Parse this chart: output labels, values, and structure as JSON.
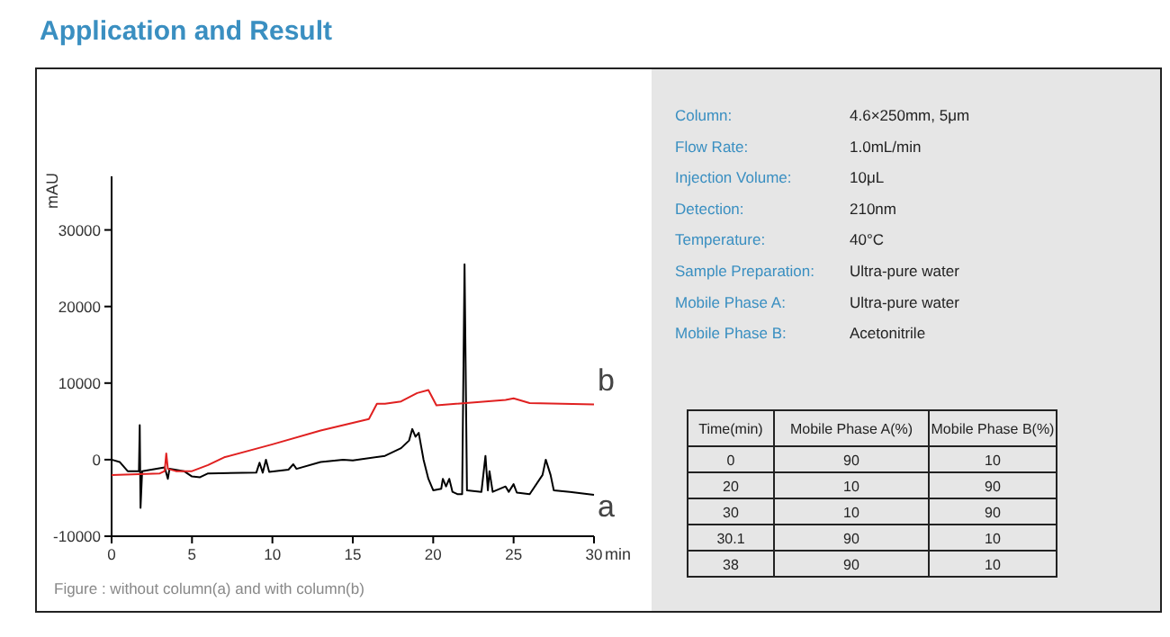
{
  "chart_data": [
    {
      "type": "line",
      "title": "Application and Result",
      "xlabel": "min",
      "ylabel": "mAU",
      "xlim": [
        0,
        30
      ],
      "ylim": [
        -10000,
        37000
      ],
      "xticks": [
        0,
        5,
        10,
        15,
        20,
        25,
        30
      ],
      "yticks": [
        -10000,
        0,
        10000,
        20000,
        30000
      ],
      "annotations": [
        "Figure : without column(a) and with column(b)"
      ],
      "series": [
        {
          "name": "a",
          "color": "#000000",
          "x": [
            0,
            0.5,
            1,
            1.7,
            1.75,
            1.8,
            1.9,
            3.3,
            3.5,
            3.6,
            4.5,
            5,
            5.5,
            6,
            9,
            9.2,
            9.4,
            9.6,
            9.8,
            11,
            11.3,
            11.5,
            13,
            14.4,
            15,
            17,
            18,
            18.5,
            18.7,
            18.9,
            19.1,
            19.4,
            19.7,
            20,
            20.5,
            20.6,
            20.8,
            21,
            21.2,
            21.5,
            21.8,
            21.95,
            22.1,
            23,
            23.25,
            23.4,
            23.5,
            23.7,
            24.5,
            24.7,
            25,
            25.2,
            26,
            26.8,
            27,
            27.3,
            27.5,
            28.5,
            30
          ],
          "values": [
            0,
            -300,
            -1500,
            -1500,
            4500,
            -6300,
            -1500,
            -1000,
            -2500,
            -1200,
            -1500,
            -2200,
            -2300,
            -1800,
            -1700,
            -400,
            -1700,
            0,
            -1600,
            -1300,
            -600,
            -1200,
            -300,
            0,
            -100,
            500,
            1500,
            2500,
            4000,
            3000,
            3500,
            0,
            -2500,
            -4000,
            -3800,
            -2500,
            -3500,
            -2500,
            -4200,
            -4500,
            -4500,
            25500,
            -4000,
            -4200,
            500,
            -4000,
            -1500,
            -4200,
            -3500,
            -4200,
            -3200,
            -4300,
            -4500,
            -2000,
            0,
            -2000,
            -4000,
            -4200,
            -4600
          ]
        },
        {
          "name": "b",
          "color": "#e02020",
          "x": [
            0,
            3,
            3.3,
            3.4,
            3.5,
            4,
            5,
            6,
            7,
            10,
            13,
            15,
            16,
            16.5,
            17,
            18,
            19,
            19.7,
            20.2,
            24.5,
            25,
            26,
            30
          ],
          "values": [
            -2000,
            -1800,
            -1500,
            800,
            -1200,
            -1500,
            -1500,
            -700,
            300,
            2000,
            3800,
            4800,
            5300,
            7300,
            7300,
            7600,
            8700,
            9100,
            7100,
            7800,
            8000,
            7400,
            7200
          ]
        }
      ]
    },
    {
      "type": "other",
      "y_categories": [
        "Column:",
        "Flow Rate:",
        "Injection Volume:",
        "Detection:",
        "Temperature:",
        "Sample Preparation:",
        "Mobile Phase A:",
        "Mobile Phase B:"
      ],
      "cell_labels": [
        [
          "4.6×250mm, 5μm"
        ],
        [
          "1.0mL/min"
        ],
        [
          "10μL"
        ],
        [
          "210nm"
        ],
        [
          "40°C"
        ],
        [
          "Ultra-pure water"
        ],
        [
          "Ultra-pure water"
        ],
        [
          "Acetonitrile"
        ]
      ]
    },
    {
      "type": "other",
      "categories": [
        "Time(min)",
        "Mobile Phase A(%)",
        "Mobile Phase B(%)"
      ],
      "cell_labels": [
        [
          "0",
          "90",
          "10"
        ],
        [
          "20",
          "10",
          "90"
        ],
        [
          "30",
          "10",
          "90"
        ],
        [
          "30.1",
          "90",
          "10"
        ],
        [
          "38",
          "90",
          "10"
        ]
      ]
    }
  ]
}
